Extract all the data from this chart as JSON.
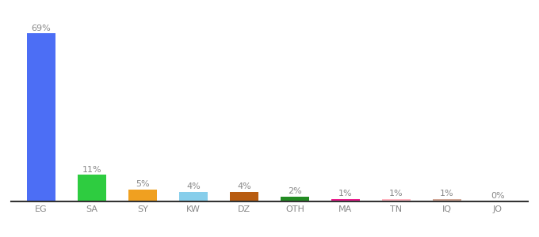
{
  "categories": [
    "EG",
    "SA",
    "SY",
    "KW",
    "DZ",
    "OTH",
    "MA",
    "TN",
    "IQ",
    "JO"
  ],
  "values": [
    69,
    11,
    5,
    4,
    4,
    2,
    1,
    1,
    1,
    0
  ],
  "labels": [
    "69%",
    "11%",
    "5%",
    "4%",
    "4%",
    "2%",
    "1%",
    "1%",
    "1%",
    "0%"
  ],
  "bar_colors": [
    "#4c6ef5",
    "#2ecc40",
    "#f0a020",
    "#87ceeb",
    "#b85c10",
    "#228b22",
    "#e91e8c",
    "#ffb6c1",
    "#d2a898",
    "#d2a898"
  ],
  "background_color": "#ffffff",
  "ylim": [
    0,
    75
  ],
  "bar_width": 0.55,
  "label_fontsize": 8.0,
  "tick_fontsize": 8.0,
  "label_color": "#888888",
  "tick_color": "#888888",
  "spine_color": "#333333"
}
